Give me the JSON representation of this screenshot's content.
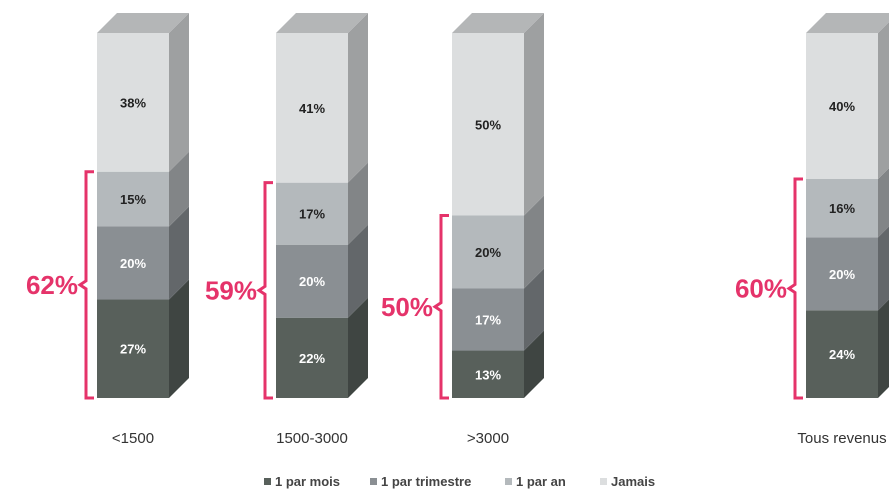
{
  "chart_data": {
    "type": "bar",
    "stacked": true,
    "title": "",
    "xlabel": "",
    "ylabel": "",
    "categories": [
      "<1500",
      "1500-3000",
      ">3000",
      "Tous revenus"
    ],
    "series": [
      {
        "name": "1 par mois",
        "values": [
          27,
          22,
          13,
          24
        ],
        "labels": [
          "27%",
          "22%",
          "13%",
          "24%"
        ],
        "color": "#58605b",
        "text_color": "#ffffff"
      },
      {
        "name": "1 par trimestre",
        "values": [
          20,
          20,
          17,
          20
        ],
        "labels": [
          "20%",
          "20%",
          "17%",
          "20%"
        ],
        "color": "#8a8f93",
        "text_color": "#ffffff"
      },
      {
        "name": "1 par an",
        "values": [
          15,
          17,
          20,
          16
        ],
        "labels": [
          "15%",
          "17%",
          "20%",
          "16%"
        ],
        "color": "#b4b9bc",
        "text_color": "#222222"
      },
      {
        "name": "Jamais",
        "values": [
          38,
          41,
          50,
          40
        ],
        "labels": [
          "38%",
          "41%",
          "50%",
          "40%"
        ],
        "color": "#dcdedf",
        "text_color": "#222222"
      }
    ],
    "brace_totals": {
      "values": [
        62,
        59,
        50,
        60
      ],
      "labels": [
        "62%",
        "59%",
        "50%",
        "60%"
      ],
      "color": "#e5336a"
    },
    "ylim": [
      0,
      100
    ],
    "grid": false,
    "legend": "bottom",
    "legend_labels": [
      "1 par mois",
      "1 par trimestre",
      "1 par an",
      "Jamais"
    ]
  }
}
